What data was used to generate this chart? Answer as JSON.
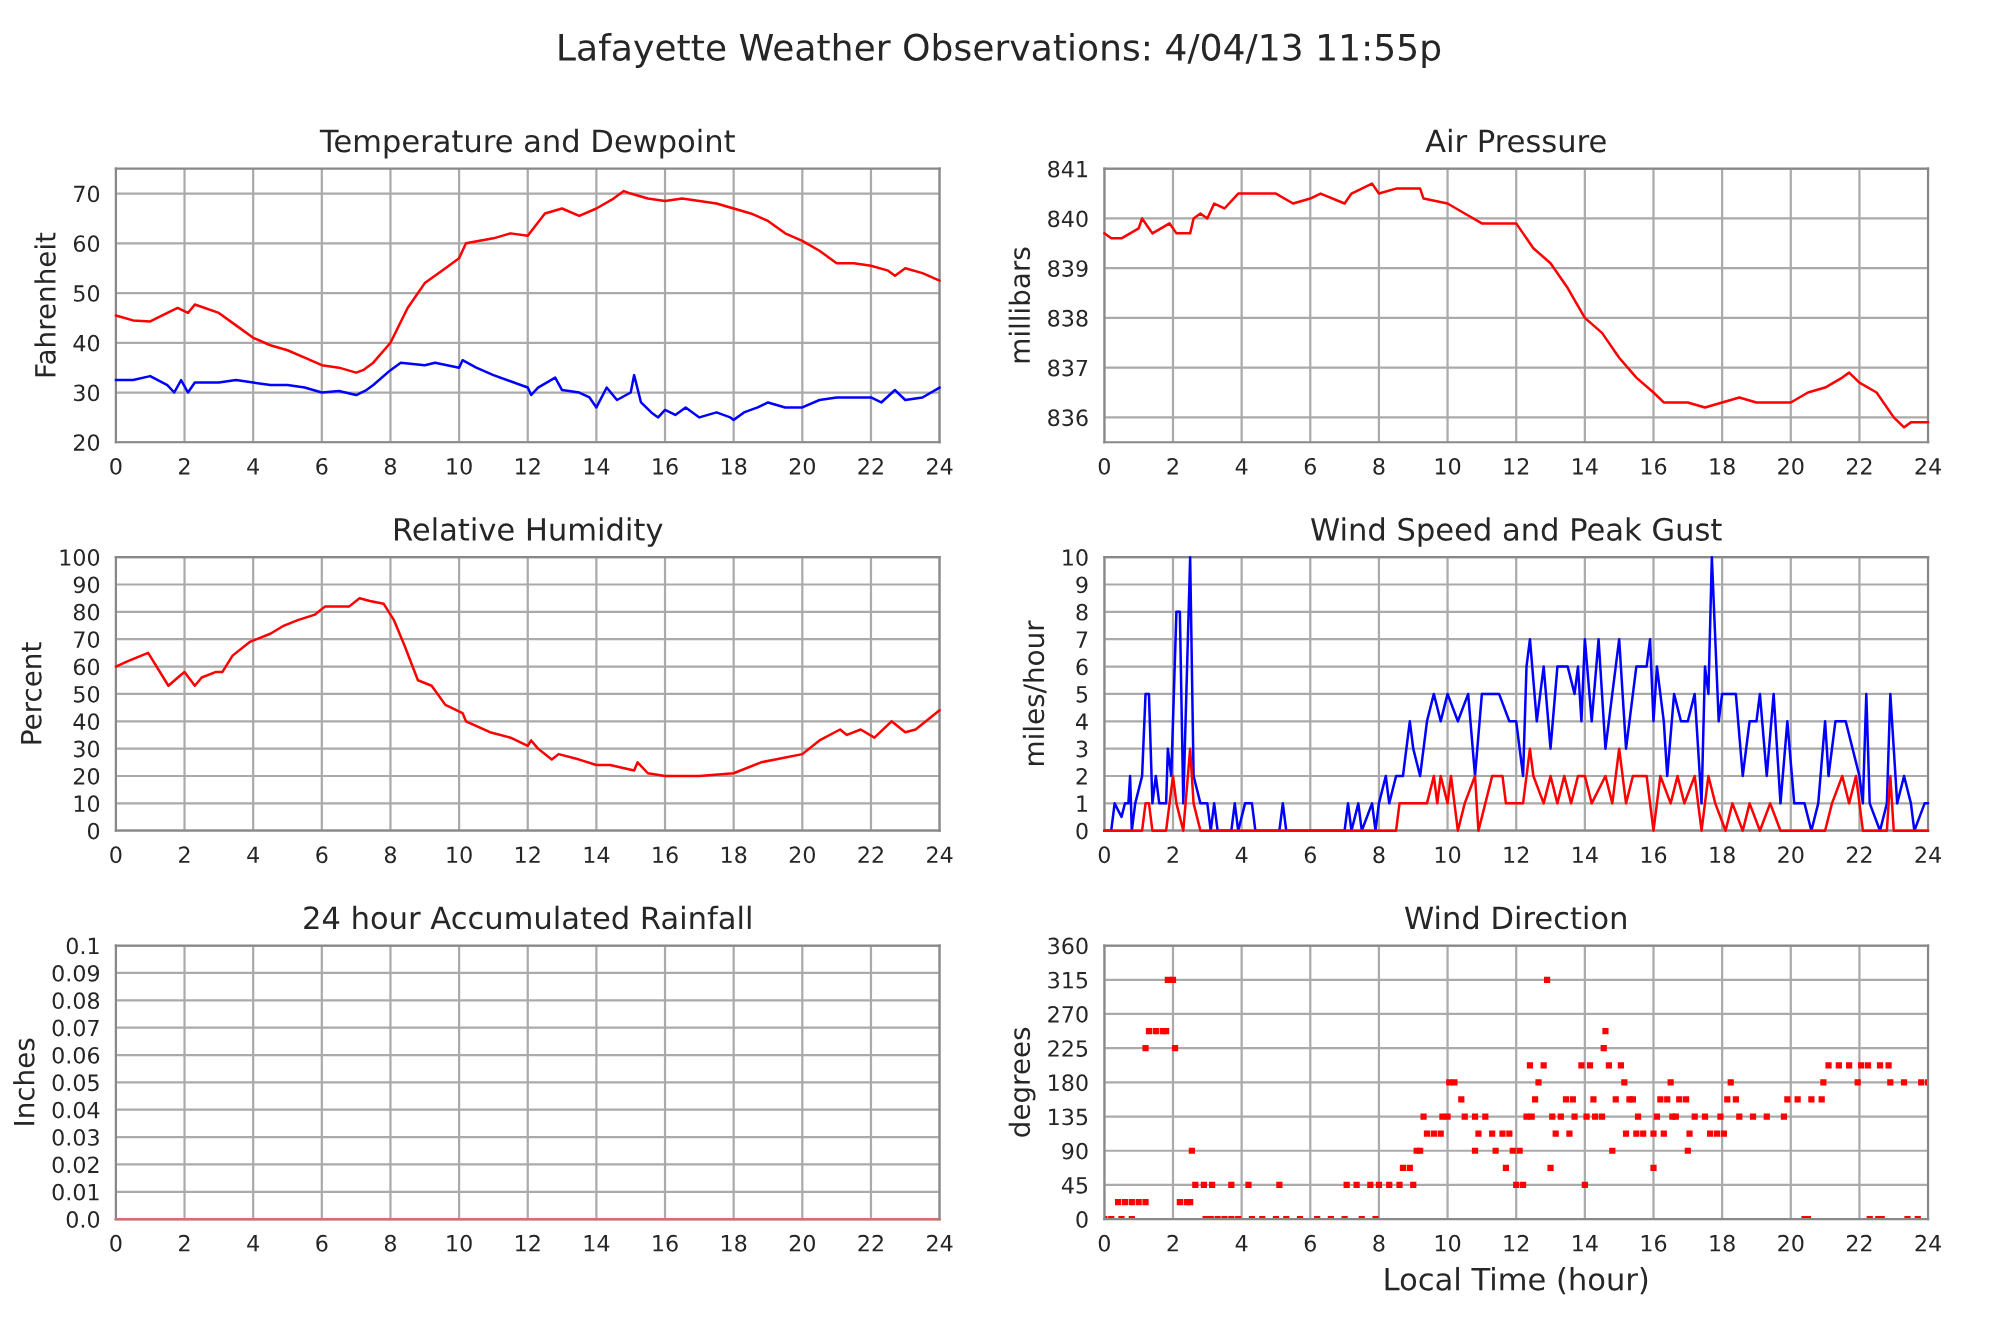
{
  "chart_data": [
    {
      "type": "line",
      "title": "Temperature and Dewpoint",
      "ylabel": "Fahrenheit",
      "annotations": [
        "Lafayette Weather Observations: 4/04/13 11:55p"
      ],
      "xlim": [
        0,
        24
      ],
      "xticks": [
        0,
        2,
        4,
        6,
        8,
        10,
        12,
        14,
        16,
        18,
        20,
        22,
        24
      ],
      "ylim": [
        20,
        75
      ],
      "yticks": [
        20,
        30,
        40,
        50,
        60,
        70
      ],
      "grid": true,
      "series": [
        {
          "color": "#ff0000",
          "x": [
            0,
            0.5,
            1,
            1.5,
            1.8,
            2.1,
            2.3,
            3,
            3.5,
            4,
            4.5,
            5,
            5.5,
            6,
            6.5,
            7,
            7.2,
            7.5,
            8,
            8.5,
            9,
            9.5,
            10,
            10.2,
            11,
            11.5,
            12,
            12.5,
            13,
            13.5,
            14,
            14.5,
            14.8,
            15,
            15.5,
            16,
            16.5,
            17,
            17.5,
            18,
            18.5,
            19,
            19.5,
            20,
            20.5,
            21,
            21.5,
            22,
            22.5,
            22.7,
            23,
            23.5,
            24
          ],
          "values": [
            45.5,
            44.5,
            44.3,
            46,
            47,
            46,
            47.7,
            46,
            43.5,
            41,
            39.5,
            38.5,
            37,
            35.5,
            35,
            34,
            34.5,
            36,
            40,
            47,
            52,
            54.5,
            57,
            60,
            61,
            62,
            61.5,
            66,
            67,
            65.5,
            67,
            69,
            70.5,
            70,
            69,
            68.5,
            69,
            68.5,
            68,
            67,
            66,
            64.5,
            62,
            60.5,
            58.5,
            56,
            56,
            55.5,
            54.5,
            53.5,
            55,
            54,
            52.5
          ]
        },
        {
          "color": "#0000ff",
          "x": [
            0,
            0.5,
            1,
            1.5,
            1.7,
            1.9,
            2.1,
            2.3,
            3,
            3.5,
            4,
            4.5,
            5,
            5.5,
            6,
            6.5,
            7,
            7.3,
            7.5,
            8,
            8.3,
            9,
            9.3,
            10,
            10.1,
            10.5,
            11,
            12,
            12.1,
            12.3,
            12.8,
            13,
            13.5,
            13.8,
            14,
            14.3,
            14.6,
            15,
            15.1,
            15.3,
            15.6,
            15.8,
            16,
            16.3,
            16.6,
            17,
            17.5,
            17.9,
            18,
            18.3,
            18.7,
            19,
            19.5,
            20,
            20.5,
            21,
            21.5,
            22,
            22.3,
            22.7,
            23,
            23.5,
            24
          ],
          "values": [
            32.5,
            32.5,
            33.3,
            31.5,
            30,
            32.5,
            30,
            32,
            32,
            32.5,
            32,
            31.5,
            31.5,
            31,
            30,
            30.3,
            29.5,
            30.5,
            31.5,
            34.5,
            36,
            35.5,
            36,
            35,
            36.5,
            35,
            33.5,
            31,
            29.5,
            31,
            33,
            30.5,
            30,
            29,
            27,
            31,
            28.5,
            30,
            33.5,
            28,
            26,
            25,
            26.5,
            25.5,
            27,
            25,
            26,
            25,
            24.5,
            26,
            27,
            28,
            27,
            27,
            28.5,
            29,
            29,
            29,
            28,
            30.5,
            28.5,
            29,
            31
          ]
        }
      ]
    },
    {
      "type": "line",
      "title": "Air Pressure",
      "ylabel": "millibars",
      "xlim": [
        0,
        24
      ],
      "xticks": [
        0,
        2,
        4,
        6,
        8,
        10,
        12,
        14,
        16,
        18,
        20,
        22,
        24
      ],
      "ylim": [
        835.5,
        841
      ],
      "yticks": [
        836,
        837,
        838,
        839,
        840,
        841
      ],
      "grid": true,
      "series": [
        {
          "color": "#ff0000",
          "x": [
            0,
            0.2,
            0.5,
            1,
            1.1,
            1.4,
            1.9,
            2.1,
            2.5,
            2.6,
            2.8,
            3,
            3.2,
            3.5,
            3.9,
            4.5,
            5,
            5.5,
            6,
            6.3,
            7,
            7.2,
            7.8,
            8,
            8.5,
            9.2,
            9.3,
            10,
            10.5,
            11,
            11.6,
            12,
            12.5,
            13,
            13.5,
            14,
            14.5,
            15,
            15.5,
            16,
            16.3,
            17,
            17.5,
            18,
            18.5,
            19,
            20,
            20.5,
            21,
            21.5,
            21.7,
            22,
            22.5,
            23,
            23.3,
            23.5,
            24
          ],
          "values": [
            839.7,
            839.6,
            839.6,
            839.8,
            840,
            839.7,
            839.9,
            839.7,
            839.7,
            840,
            840.1,
            840,
            840.3,
            840.2,
            840.5,
            840.5,
            840.5,
            840.3,
            840.4,
            840.5,
            840.3,
            840.5,
            840.7,
            840.5,
            840.6,
            840.6,
            840.4,
            840.3,
            840.1,
            839.9,
            839.9,
            839.9,
            839.4,
            839.1,
            838.6,
            838,
            837.7,
            837.2,
            836.8,
            836.5,
            836.3,
            836.3,
            836.2,
            836.3,
            836.4,
            836.3,
            836.3,
            836.5,
            836.6,
            836.8,
            836.9,
            836.7,
            836.5,
            836,
            835.8,
            835.9,
            835.9
          ]
        }
      ]
    },
    {
      "type": "line",
      "title": "Relative Humidity",
      "ylabel": "Percent",
      "xlim": [
        0,
        24
      ],
      "xticks": [
        0,
        2,
        4,
        6,
        8,
        10,
        12,
        14,
        16,
        18,
        20,
        22,
        24
      ],
      "ylim": [
        0,
        100
      ],
      "yticks": [
        0,
        10,
        20,
        30,
        40,
        50,
        60,
        70,
        80,
        90,
        100
      ],
      "grid": true,
      "series": [
        {
          "color": "#ff0000",
          "x": [
            0,
            0.35,
            0.94,
            1.53,
            1.9,
            2.0,
            2.3,
            2.5,
            2.9,
            3.1,
            3.4,
            3.9,
            4.5,
            4.9,
            5.3,
            5.8,
            6.1,
            6.8,
            7.1,
            7.4,
            7.8,
            8.1,
            8.4,
            8.8,
            9.2,
            9.6,
            10.1,
            10.2,
            10.9,
            11.5,
            12.0,
            12.1,
            12.3,
            12.7,
            12.9,
            13.5,
            14.0,
            14.4,
            15.1,
            15.2,
            15.5,
            16.0,
            17.0,
            18.0,
            18.8,
            20.0,
            20.5,
            21.1,
            21.3,
            21.7,
            22.1,
            22.6,
            23.0,
            23.3,
            24
          ],
          "values": [
            60,
            62,
            65,
            53,
            57,
            58,
            53,
            56,
            58,
            58,
            64,
            69,
            72,
            75,
            77,
            79,
            82,
            82,
            85,
            84,
            83,
            77,
            68,
            55,
            53,
            46,
            43,
            40,
            36,
            34,
            31,
            33,
            30,
            26,
            28,
            26,
            24,
            24,
            22,
            25,
            21,
            20,
            20,
            21,
            25,
            28,
            33,
            37,
            35,
            37,
            34,
            40,
            36,
            37,
            44
          ]
        }
      ]
    },
    {
      "type": "line",
      "title": "Wind Speed and Peak Gust",
      "ylabel": "miles/hour",
      "xlim": [
        0,
        24
      ],
      "xticks": [
        0,
        2,
        4,
        6,
        8,
        10,
        12,
        14,
        16,
        18,
        20,
        22,
        24
      ],
      "ylim": [
        0,
        10
      ],
      "yticks": [
        0,
        1,
        2,
        3,
        4,
        5,
        6,
        7,
        8,
        9,
        10
      ],
      "grid": true,
      "series": [
        {
          "color": "#0000ff",
          "x": [
            0,
            0.2,
            0.3,
            0.5,
            0.6,
            0.7,
            0.75,
            0.8,
            0.9,
            1.1,
            1.2,
            1.3,
            1.4,
            1.5,
            1.6,
            1.8,
            1.85,
            1.95,
            2.1,
            2.2,
            2.3,
            2.5,
            2.6,
            2.8,
            3.0,
            3.1,
            3.2,
            3.3,
            3.7,
            3.8,
            3.9,
            4.1,
            4.3,
            4.4,
            5.1,
            5.2,
            5.3,
            7.0,
            7.1,
            7.2,
            7.4,
            7.5,
            7.8,
            7.9,
            8.0,
            8.2,
            8.3,
            8.5,
            8.7,
            8.8,
            8.9,
            9.0,
            9.2,
            9.4,
            9.6,
            9.8,
            10.0,
            10.3,
            10.6,
            10.8,
            11.0,
            11.5,
            11.8,
            12.0,
            12.2,
            12.3,
            12.4,
            12.6,
            12.8,
            13.0,
            13.2,
            13.5,
            13.7,
            13.8,
            13.9,
            14.0,
            14.2,
            14.4,
            14.6,
            14.8,
            15.0,
            15.2,
            15.5,
            15.8,
            15.9,
            16.0,
            16.1,
            16.3,
            16.4,
            16.6,
            16.8,
            17.0,
            17.2,
            17.4,
            17.5,
            17.6,
            17.7,
            17.9,
            18.0,
            18.4,
            18.6,
            18.8,
            19.0,
            19.1,
            19.3,
            19.5,
            19.7,
            19.9,
            20.1,
            20.4,
            20.6,
            20.8,
            21.0,
            21.1,
            21.3,
            21.6,
            21.8,
            22.0,
            22.1,
            22.2,
            22.3,
            22.6,
            22.8,
            22.9,
            23.1,
            23.3,
            23.5,
            23.6,
            23.9,
            24
          ],
          "values": [
            0,
            0,
            1,
            0.5,
            1,
            1,
            2,
            0,
            1,
            2,
            5,
            5,
            1,
            2,
            1,
            1,
            3,
            2,
            8,
            8,
            1,
            10,
            2,
            1,
            1,
            0,
            1,
            0,
            0,
            1,
            0,
            1,
            1,
            0,
            0,
            1,
            0,
            0,
            1,
            0,
            1,
            0,
            1,
            0,
            1,
            2,
            1,
            2,
            2,
            3,
            4,
            3,
            2,
            4,
            5,
            4,
            5,
            4,
            5,
            2,
            5,
            5,
            4,
            4,
            2,
            6,
            7,
            4,
            6,
            3,
            6,
            6,
            5,
            6,
            4,
            7,
            4,
            7,
            3,
            5,
            7,
            3,
            6,
            6,
            7,
            4,
            6,
            4,
            2,
            5,
            4,
            4,
            5,
            1,
            6,
            5,
            10,
            4,
            5,
            5,
            2,
            4,
            4,
            5,
            2,
            5,
            1,
            4,
            1,
            1,
            0,
            1,
            4,
            2,
            4,
            4,
            3,
            2,
            1,
            5,
            1,
            0,
            1,
            5,
            1,
            2,
            1,
            0,
            1,
            1
          ]
        },
        {
          "color": "#ff0000",
          "x": [
            0,
            1.1,
            1.2,
            1.3,
            1.4,
            1.8,
            2.0,
            2.1,
            2.3,
            2.5,
            2.6,
            2.8,
            8.5,
            8.6,
            9.0,
            9.4,
            9.6,
            9.7,
            9.8,
            10.0,
            10.1,
            10.3,
            10.5,
            10.8,
            10.9,
            11.1,
            11.3,
            11.6,
            11.7,
            12.2,
            12.4,
            12.5,
            12.8,
            13.0,
            13.2,
            13.4,
            13.6,
            13.8,
            14.0,
            14.2,
            14.6,
            14.8,
            15.0,
            15.2,
            15.4,
            15.8,
            16.0,
            16.2,
            16.5,
            16.7,
            16.9,
            17.2,
            17.4,
            17.6,
            17.8,
            18.1,
            18.3,
            18.6,
            18.8,
            19.1,
            19.4,
            19.7,
            21.0,
            21.2,
            21.5,
            21.7,
            21.9,
            22.1,
            22.8,
            22.9,
            23.0,
            24
          ],
          "values": [
            0,
            0,
            1,
            1,
            0,
            0,
            2,
            1,
            0,
            3,
            1,
            0,
            0,
            1,
            1,
            1,
            2,
            1,
            2,
            1,
            2,
            0,
            1,
            2,
            0,
            1,
            2,
            2,
            1,
            1,
            3,
            2,
            1,
            2,
            1,
            2,
            1,
            2,
            2,
            1,
            2,
            1,
            3,
            1,
            2,
            2,
            0,
            2,
            1,
            2,
            1,
            2,
            0,
            2,
            1,
            0,
            1,
            0,
            1,
            0,
            1,
            0,
            0,
            1,
            2,
            1,
            2,
            0,
            0,
            2,
            0,
            0
          ]
        }
      ]
    },
    {
      "type": "line",
      "title": "24 hour Accumulated Rainfall",
      "ylabel": "Inches",
      "xlim": [
        0,
        24
      ],
      "xticks": [
        0,
        2,
        4,
        6,
        8,
        10,
        12,
        14,
        16,
        18,
        20,
        22,
        24
      ],
      "ylim": [
        0,
        0.1
      ],
      "yticks": [
        {
          "value": 0,
          "label": "0.0"
        },
        0.01,
        0.02,
        0.03,
        0.04,
        0.05,
        0.06,
        0.07,
        0.08,
        0.09,
        0.1
      ],
      "grid": true,
      "series": [
        {
          "color": "#d07070",
          "x": [
            0,
            24
          ],
          "values": [
            0,
            0
          ]
        }
      ]
    },
    {
      "type": "scatter",
      "title": "Wind Direction",
      "ylabel": "degrees",
      "xlabel": "Local Time (hour)",
      "xlim": [
        0,
        24
      ],
      "xticks": [
        0,
        2,
        4,
        6,
        8,
        10,
        12,
        14,
        16,
        18,
        20,
        22,
        24
      ],
      "ylim": [
        0,
        360
      ],
      "yticks": [
        0,
        45,
        90,
        135,
        180,
        225,
        270,
        315,
        360
      ],
      "grid": true,
      "marker": "square",
      "series": [
        {
          "color": "#ff0000",
          "x": [
            0,
            0.2,
            0.4,
            0.5,
            0.6,
            0.8,
            0.8,
            1.0,
            1.2,
            1.2,
            1.3,
            1.5,
            1.7,
            1.8,
            1.85,
            2.0,
            2.06,
            2.2,
            2.4,
            2.5,
            2.55,
            2.65,
            2.9,
            2.95,
            3.1,
            3.14,
            3.3,
            3.5,
            3.7,
            3.7,
            3.9,
            4.2,
            4.3,
            4.6,
            5.0,
            5.1,
            5.3,
            5.7,
            6.2,
            6.6,
            7.0,
            7.06,
            7.35,
            7.5,
            7.75,
            7.9,
            8.0,
            8.3,
            8.6,
            8.7,
            8.9,
            9.0,
            9.1,
            9.2,
            9.3,
            9.4,
            9.6,
            9.8,
            9.85,
            10.0,
            10.05,
            10.2,
            10.4,
            10.5,
            10.8,
            10.8,
            10.9,
            11.1,
            11.3,
            11.4,
            11.6,
            11.7,
            11.8,
            11.9,
            12.0,
            12.1,
            12.2,
            12.3,
            12.4,
            12.45,
            12.55,
            12.65,
            12.8,
            12.9,
            13.0,
            13.05,
            13.15,
            13.3,
            13.45,
            13.55,
            13.65,
            13.7,
            13.9,
            14.0,
            14.05,
            14.15,
            14.25,
            14.3,
            14.5,
            14.55,
            14.6,
            14.7,
            14.8,
            14.9,
            15.05,
            15.15,
            15.2,
            15.3,
            15.4,
            15.5,
            15.55,
            15.7,
            16.0,
            16.0,
            16.1,
            16.2,
            16.3,
            16.4,
            16.5,
            16.55,
            16.65,
            16.75,
            16.95,
            17.0,
            17.05,
            17.2,
            17.5,
            17.65,
            17.85,
            17.95,
            18.05,
            18.15,
            18.25,
            18.4,
            18.5,
            18.9,
            19.3,
            19.8,
            19.9,
            20.2,
            20.4,
            20.5,
            20.6,
            20.9,
            20.95,
            21.1,
            21.4,
            21.7,
            21.95,
            22.05,
            22.25,
            22.3,
            22.55,
            22.6,
            22.65,
            22.85,
            22.9,
            23.3,
            23.4,
            23.7,
            23.8,
            24
          ],
          "values": [
            0,
            0,
            22.5,
            0,
            22.5,
            0,
            22.5,
            22.5,
            22.5,
            225,
            247.5,
            247.5,
            247.5,
            247.5,
            315,
            315,
            225,
            22.5,
            22.5,
            22.5,
            90,
            45,
            45,
            0,
            0,
            45,
            0,
            0,
            0,
            45,
            0,
            45,
            0,
            0,
            0,
            45,
            0,
            0,
            0,
            0,
            0,
            45,
            45,
            0,
            45,
            0,
            45,
            45,
            45,
            67.5,
            67.5,
            45,
            90,
            90,
            135,
            112.5,
            112.5,
            112.5,
            135,
            135,
            180,
            180,
            157.5,
            135,
            135,
            90,
            112.5,
            135,
            112.5,
            90,
            112.5,
            67.5,
            112.5,
            90,
            45,
            90,
            45,
            135,
            202.5,
            135,
            157.5,
            180,
            202.5,
            315,
            67.5,
            135,
            112.5,
            135,
            157.5,
            112.5,
            157.5,
            135,
            202.5,
            45,
            135,
            202.5,
            157.5,
            135,
            135,
            225,
            247.5,
            202.5,
            90,
            157.5,
            202.5,
            180,
            112.5,
            157.5,
            157.5,
            112.5,
            135,
            112.5,
            112.5,
            67.5,
            135,
            157.5,
            112.5,
            157.5,
            180,
            135,
            135,
            157.5,
            157.5,
            90,
            112.5,
            135,
            135,
            112.5,
            112.5,
            135,
            112.5,
            157.5,
            180,
            157.5,
            135,
            135,
            135,
            135,
            157.5,
            157.5,
            0,
            0,
            157.5,
            157.5,
            180,
            202.5,
            202.5,
            202.5,
            180,
            202.5,
            202.5,
            0,
            0,
            202.5,
            0,
            202.5,
            180,
            180,
            0,
            0,
            180,
            180
          ]
        }
      ]
    }
  ]
}
